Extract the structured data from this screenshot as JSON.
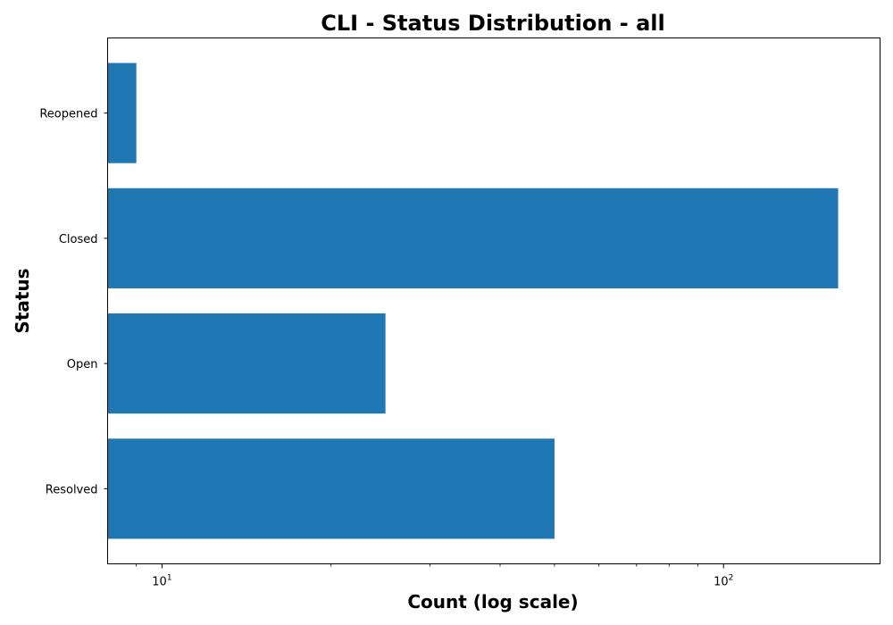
{
  "chart_data": {
    "type": "bar",
    "orientation": "horizontal",
    "title": "CLI - Status Distribution - all",
    "xlabel": "Count (log scale)",
    "ylabel": "Status",
    "x_scale": "log",
    "xlim": [
      8,
      190
    ],
    "categories": [
      "Resolved",
      "Open",
      "Closed",
      "Reopened"
    ],
    "values": [
      50,
      25,
      160,
      9
    ],
    "x_ticks": [
      {
        "value": 10,
        "base": "10",
        "exp": "1"
      },
      {
        "value": 100,
        "base": "10",
        "exp": "2"
      }
    ],
    "minor_ticks": [
      9,
      20,
      30,
      40,
      50,
      60,
      70,
      80,
      90
    ],
    "bar_color": "#1f77b4",
    "grid": false,
    "legend": "none"
  }
}
